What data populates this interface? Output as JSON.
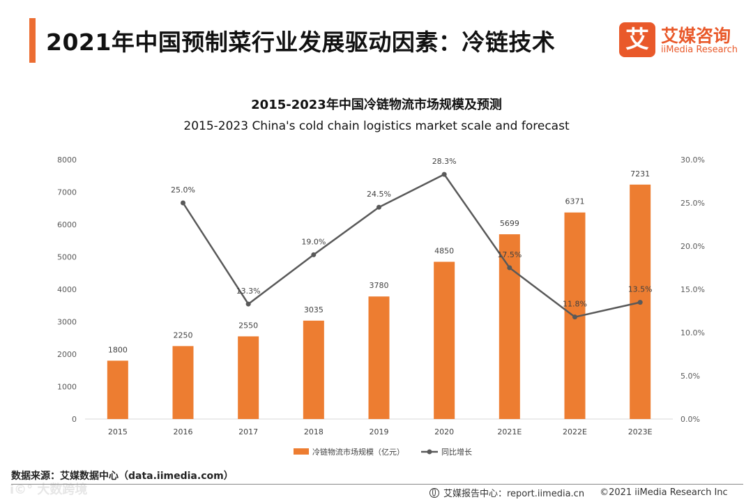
{
  "header": {
    "title": "2021年中国预制菜行业发展驱动因素：冷链技术",
    "accent_color": "#ec6d32"
  },
  "logo": {
    "glyph": "艾",
    "name_cn": "艾媒咨询",
    "name_en": "iiMedia Research",
    "color": "#e9592a"
  },
  "chart_data": {
    "type": "bar+line",
    "title": "2015-2023年中国冷链物流市场规模及预测",
    "subtitle": "2015-2023 China's cold chain logistics market scale and forecast",
    "categories": [
      "2015",
      "2016",
      "2017",
      "2018",
      "2019",
      "2020",
      "2021E",
      "2022E",
      "2023E"
    ],
    "series": [
      {
        "name": "冷链物流市场规模（亿元）",
        "type": "bar",
        "axis": "left",
        "color": "#ed7d31",
        "values": [
          1800,
          2250,
          2550,
          3035,
          3780,
          4850,
          5699,
          6371,
          7231
        ],
        "labels": [
          "1800",
          "2250",
          "2550",
          "3035",
          "3780",
          "4850",
          "5699",
          "6371",
          "7231"
        ]
      },
      {
        "name": "同比增长",
        "type": "line",
        "axis": "right",
        "color": "#595959",
        "values": [
          null,
          25.0,
          13.3,
          19.0,
          24.5,
          28.3,
          17.5,
          11.8,
          13.5
        ],
        "labels": [
          "",
          "25.0%",
          "13.3%",
          "19.0%",
          "24.5%",
          "28.3%",
          "17.5%",
          "11.8%",
          "13.5%"
        ]
      }
    ],
    "y_left": {
      "range": [
        0,
        8000
      ],
      "ticks": [
        0,
        1000,
        2000,
        3000,
        4000,
        5000,
        6000,
        7000,
        8000
      ],
      "tick_labels": [
        "0",
        "1000",
        "2000",
        "3000",
        "4000",
        "5000",
        "6000",
        "7000",
        "8000"
      ]
    },
    "y_right": {
      "range": [
        0,
        30
      ],
      "ticks": [
        0,
        5,
        10,
        15,
        20,
        25,
        30
      ],
      "tick_labels": [
        "0.0%",
        "5.0%",
        "10.0%",
        "15.0%",
        "20.0%",
        "25.0%",
        "30.0%"
      ]
    },
    "grid": false,
    "legend_position": "bottom-center"
  },
  "footer": {
    "source": "数据来源：艾媒数据中心（data.iimedia.com）",
    "report_center": "艾媒报告中心：report.iimedia.cn",
    "copyright": "©2021  iiMedia Research  Inc",
    "watermark": "i©° 大数跨境"
  }
}
